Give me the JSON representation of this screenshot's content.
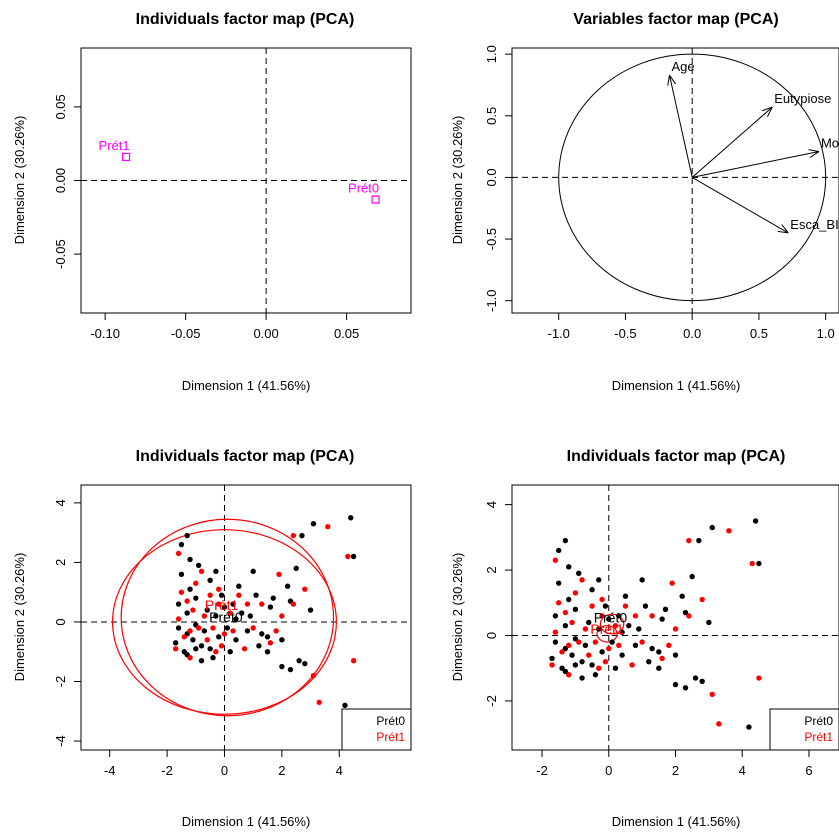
{
  "chart_data": [
    {
      "type": "scatter",
      "title": "Individuals factor map (PCA)",
      "xlabel": "Dimension 1 (41.56%)",
      "ylabel": "Dimension 2 (30.26%)",
      "xlim": [
        -0.115,
        0.09
      ],
      "ylim": [
        -0.09,
        0.09
      ],
      "xticks": [
        -0.1,
        -0.05,
        0.0,
        0.05
      ],
      "xtick_labels": [
        "-0.10",
        "-0.05",
        "0.00",
        "0.05"
      ],
      "yticks": [
        -0.05,
        0.0,
        0.05
      ],
      "ytick_labels": [
        "-0.05",
        "0.00",
        "0.05"
      ],
      "grid": false,
      "color": "#ff00ff",
      "points": [
        {
          "label": "Prét1",
          "x": -0.087,
          "y": 0.016
        },
        {
          "label": "Prét0",
          "x": 0.068,
          "y": -0.013
        }
      ]
    },
    {
      "type": "scatter",
      "title": "Variables factor map (PCA)",
      "xlabel": "Dimension 1 (41.56%)",
      "ylabel": "Dimension 2 (30.26%)",
      "xlim": [
        -1.35,
        1.1
      ],
      "ylim": [
        -1.1,
        1.05
      ],
      "xticks": [
        -1.0,
        -0.5,
        0.0,
        0.5,
        1.0
      ],
      "xtick_labels": [
        "-1.0",
        "-0.5",
        "0.0",
        "0.5",
        "1.0"
      ],
      "yticks": [
        -1.0,
        -0.5,
        0.0,
        0.5,
        1.0
      ],
      "ytick_labels": [
        "-1.0",
        "-0.5",
        "0.0",
        "0.5",
        "1.0"
      ],
      "grid": false,
      "arrows": [
        {
          "label": "Age",
          "x": -0.17,
          "y": 0.83
        },
        {
          "label": "Eutypiose",
          "x": 0.6,
          "y": 0.57
        },
        {
          "label": "Morta",
          "x": 0.95,
          "y": 0.21
        },
        {
          "label": "Esca_BI",
          "x": 0.72,
          "y": -0.45
        }
      ]
    },
    {
      "type": "scatter",
      "title": "Individuals factor map (PCA)",
      "xlabel": "Dimension 1 (41.56%)",
      "ylabel": "Dimension 2 (30.26%)",
      "xlim": [
        -5,
        6.5
      ],
      "ylim": [
        -4.3,
        4.6
      ],
      "xticks": [
        -4,
        -2,
        0,
        2,
        4
      ],
      "xtick_labels": [
        "-4",
        "-2",
        "0",
        "2",
        "4"
      ],
      "yticks": [
        -4,
        -2,
        0,
        2,
        4
      ],
      "ytick_labels": [
        "-4",
        "-2",
        "0",
        "2",
        "4"
      ],
      "grid": false,
      "legend": {
        "position": "bottom-right",
        "entries": [
          {
            "name": "Prét0",
            "color": "#000000"
          },
          {
            "name": "Prét1",
            "color": "#ff0000"
          }
        ]
      },
      "group_labels": [
        {
          "text": "Prét0",
          "x": 0.05,
          "y": 0.0,
          "color": "#000000"
        },
        {
          "text": "Prét1",
          "x": -0.1,
          "y": 0.4,
          "color": "#ff0000"
        }
      ],
      "ellipses": [
        {
          "cx": 0.0,
          "cy": 0.0,
          "rx": 3.9,
          "ry": 3.1,
          "color": "#ff0000"
        },
        {
          "cx": 0.1,
          "cy": 0.15,
          "rx": 3.7,
          "ry": 3.3,
          "color": "#ff0000"
        }
      ],
      "series": [
        {
          "name": "Prét0",
          "color": "#000000",
          "points": [
            [
              4.4,
              3.5
            ],
            [
              3.1,
              3.3
            ],
            [
              4.5,
              2.2
            ],
            [
              2.7,
              2.9
            ],
            [
              2.5,
              1.8
            ],
            [
              2.2,
              1.2
            ],
            [
              2.3,
              0.7
            ],
            [
              3.0,
              0.4
            ],
            [
              2.0,
              -0.6
            ],
            [
              2.8,
              -1.4
            ],
            [
              2.0,
              -1.5
            ],
            [
              2.3,
              -1.6
            ],
            [
              4.2,
              -2.8
            ],
            [
              2.6,
              -1.3
            ],
            [
              1.7,
              0.8
            ],
            [
              1.6,
              0.5
            ],
            [
              1.3,
              -0.4
            ],
            [
              1.5,
              -1.0
            ],
            [
              1.0,
              1.7
            ],
            [
              1.1,
              0.9
            ],
            [
              0.9,
              0.2
            ],
            [
              0.8,
              -0.3
            ],
            [
              1.2,
              -0.8
            ],
            [
              0.5,
              1.2
            ],
            [
              0.6,
              0.3
            ],
            [
              0.4,
              -0.6
            ],
            [
              0.2,
              -1.0
            ],
            [
              0.3,
              0.6
            ],
            [
              0.1,
              -0.2
            ],
            [
              -0.1,
              0.9
            ],
            [
              -0.3,
              0.2
            ],
            [
              -0.2,
              -0.5
            ],
            [
              -0.4,
              -1.2
            ],
            [
              -0.5,
              1.4
            ],
            [
              -0.6,
              0.4
            ],
            [
              -0.7,
              -0.3
            ],
            [
              -0.8,
              -0.8
            ],
            [
              -0.9,
              1.9
            ],
            [
              -1.0,
              0.8
            ],
            [
              -1.0,
              -0.1
            ],
            [
              -1.1,
              -0.6
            ],
            [
              -1.2,
              2.1
            ],
            [
              -1.2,
              1.1
            ],
            [
              -1.3,
              0.3
            ],
            [
              -1.3,
              -0.4
            ],
            [
              -1.4,
              -1.0
            ],
            [
              -1.5,
              2.6
            ],
            [
              -1.3,
              2.9
            ],
            [
              -1.6,
              0.6
            ],
            [
              -1.6,
              -0.2
            ],
            [
              -1.7,
              -0.7
            ],
            [
              -1.5,
              1.6
            ],
            [
              -0.3,
              1.7
            ],
            [
              0.0,
              0.5
            ],
            [
              -0.5,
              -0.9
            ],
            [
              1.5,
              -0.5
            ],
            [
              -1.0,
              -0.9
            ],
            [
              -1.3,
              -1.1
            ],
            [
              -0.8,
              -1.3
            ],
            [
              0.4,
              0.1
            ]
          ]
        },
        {
          "name": "Prét1",
          "color": "#ff0000",
          "points": [
            [
              3.6,
              3.2
            ],
            [
              4.3,
              2.2
            ],
            [
              2.4,
              2.9
            ],
            [
              1.9,
              1.6
            ],
            [
              2.8,
              1.1
            ],
            [
              2.0,
              0.2
            ],
            [
              1.8,
              -0.3
            ],
            [
              3.1,
              -1.8
            ],
            [
              3.3,
              -2.7
            ],
            [
              4.5,
              -1.3
            ],
            [
              1.3,
              0.6
            ],
            [
              1.0,
              -0.2
            ],
            [
              0.8,
              0.6
            ],
            [
              0.7,
              -0.9
            ],
            [
              0.5,
              0.9
            ],
            [
              0.2,
              0.3
            ],
            [
              0.0,
              -0.4
            ],
            [
              -0.2,
              0.6
            ],
            [
              -0.4,
              -0.2
            ],
            [
              -0.5,
              0.9
            ],
            [
              -0.6,
              -0.6
            ],
            [
              -0.7,
              0.2
            ],
            [
              -0.9,
              -0.2
            ],
            [
              -1.0,
              1.3
            ],
            [
              -1.1,
              0.4
            ],
            [
              -1.2,
              -0.3
            ],
            [
              -1.3,
              0.7
            ],
            [
              -1.4,
              -0.5
            ],
            [
              -1.5,
              1.0
            ],
            [
              -1.6,
              0.1
            ],
            [
              -1.6,
              2.3
            ],
            [
              -1.7,
              -0.9
            ],
            [
              -0.1,
              -0.8
            ],
            [
              0.3,
              -0.3
            ],
            [
              -0.3,
              -1.0
            ],
            [
              -0.8,
              1.7
            ],
            [
              1.6,
              -0.7
            ],
            [
              2.4,
              0.6
            ],
            [
              -1.2,
              -1.2
            ],
            [
              -0.2,
              1.1
            ]
          ]
        }
      ]
    },
    {
      "type": "scatter",
      "title": "Individuals factor map (PCA)",
      "xlabel": "Dimension 1 (41.56%)",
      "ylabel": "Dimension 2 (30.26%)",
      "xlim": [
        -2.9,
        6.9
      ],
      "ylim": [
        -3.5,
        4.6
      ],
      "xticks": [
        -2,
        0,
        2,
        4,
        6
      ],
      "xtick_labels": [
        "-2",
        "0",
        "2",
        "4",
        "6"
      ],
      "yticks": [
        -2,
        0,
        2,
        4
      ],
      "ytick_labels": [
        "-2",
        "0",
        "2",
        "4"
      ],
      "grid": false,
      "legend": {
        "position": "bottom-right",
        "entries": [
          {
            "name": "Prét0",
            "color": "#000000"
          },
          {
            "name": "Prét1",
            "color": "#ff0000"
          }
        ]
      },
      "group_labels": [
        {
          "text": "Prét0",
          "x": 0.05,
          "y": 0.4,
          "color": "#000000"
        },
        {
          "text": "Prét1",
          "x": -0.05,
          "y": 0.05,
          "color": "#ff0000"
        }
      ],
      "ellipses": [
        {
          "cx": 0.1,
          "cy": 0.35,
          "rx": 0.35,
          "ry": 0.3,
          "color": "#ff0000"
        },
        {
          "cx": -0.05,
          "cy": 0.05,
          "rx": 0.3,
          "ry": 0.25,
          "color": "#ff0000"
        }
      ],
      "series": [
        {
          "name": "Prét0",
          "color": "#000000",
          "points": [
            [
              4.4,
              3.5
            ],
            [
              3.1,
              3.3
            ],
            [
              4.5,
              2.2
            ],
            [
              2.7,
              2.9
            ],
            [
              2.5,
              1.8
            ],
            [
              2.2,
              1.2
            ],
            [
              2.3,
              0.7
            ],
            [
              3.0,
              0.4
            ],
            [
              2.0,
              -0.6
            ],
            [
              2.8,
              -1.4
            ],
            [
              2.0,
              -1.5
            ],
            [
              2.3,
              -1.6
            ],
            [
              4.2,
              -2.8
            ],
            [
              2.6,
              -1.3
            ],
            [
              1.7,
              0.8
            ],
            [
              1.6,
              0.5
            ],
            [
              1.3,
              -0.4
            ],
            [
              1.5,
              -1.0
            ],
            [
              1.0,
              1.7
            ],
            [
              1.1,
              0.9
            ],
            [
              0.9,
              0.2
            ],
            [
              0.8,
              -0.3
            ],
            [
              1.2,
              -0.8
            ],
            [
              0.5,
              1.2
            ],
            [
              0.6,
              0.3
            ],
            [
              0.4,
              -0.6
            ],
            [
              0.2,
              -1.0
            ],
            [
              0.3,
              0.6
            ],
            [
              0.1,
              -0.2
            ],
            [
              -0.1,
              0.9
            ],
            [
              -0.3,
              0.2
            ],
            [
              -0.2,
              -0.5
            ],
            [
              -0.4,
              -1.2
            ],
            [
              -0.5,
              1.4
            ],
            [
              -0.6,
              0.4
            ],
            [
              -0.7,
              -0.3
            ],
            [
              -0.8,
              -0.8
            ],
            [
              -0.9,
              1.9
            ],
            [
              -1.0,
              0.8
            ],
            [
              -1.0,
              -0.1
            ],
            [
              -1.1,
              -0.6
            ],
            [
              -1.2,
              2.1
            ],
            [
              -1.2,
              1.1
            ],
            [
              -1.3,
              0.3
            ],
            [
              -1.3,
              -0.4
            ],
            [
              -1.4,
              -1.0
            ],
            [
              -1.5,
              2.6
            ],
            [
              -1.3,
              2.9
            ],
            [
              -1.6,
              0.6
            ],
            [
              -1.6,
              -0.2
            ],
            [
              -1.7,
              -0.7
            ],
            [
              -1.5,
              1.6
            ],
            [
              -0.3,
              1.7
            ],
            [
              0.0,
              0.5
            ],
            [
              -0.5,
              -0.9
            ],
            [
              1.5,
              -0.5
            ],
            [
              -1.0,
              -0.9
            ],
            [
              -1.3,
              -1.1
            ],
            [
              -0.8,
              -1.3
            ],
            [
              0.4,
              0.1
            ]
          ]
        },
        {
          "name": "Prét1",
          "color": "#ff0000",
          "points": [
            [
              3.6,
              3.2
            ],
            [
              4.3,
              2.2
            ],
            [
              2.4,
              2.9
            ],
            [
              1.9,
              1.6
            ],
            [
              2.8,
              1.1
            ],
            [
              2.0,
              0.2
            ],
            [
              1.8,
              -0.3
            ],
            [
              3.1,
              -1.8
            ],
            [
              3.3,
              -2.7
            ],
            [
              4.5,
              -1.3
            ],
            [
              1.3,
              0.6
            ],
            [
              1.0,
              -0.2
            ],
            [
              0.8,
              0.6
            ],
            [
              0.7,
              -0.9
            ],
            [
              0.5,
              0.9
            ],
            [
              0.2,
              0.3
            ],
            [
              0.0,
              -0.4
            ],
            [
              -0.2,
              0.6
            ],
            [
              -0.4,
              -0.2
            ],
            [
              -0.5,
              0.9
            ],
            [
              -0.6,
              -0.6
            ],
            [
              -0.7,
              0.2
            ],
            [
              -0.9,
              -0.2
            ],
            [
              -1.0,
              1.3
            ],
            [
              -1.1,
              0.4
            ],
            [
              -1.2,
              -0.3
            ],
            [
              -1.3,
              0.7
            ],
            [
              -1.4,
              -0.5
            ],
            [
              -1.5,
              1.0
            ],
            [
              -1.6,
              0.1
            ],
            [
              -1.6,
              2.3
            ],
            [
              -1.7,
              -0.9
            ],
            [
              -0.1,
              -0.8
            ],
            [
              0.3,
              -0.3
            ],
            [
              -0.3,
              -1.0
            ],
            [
              -0.8,
              1.7
            ],
            [
              1.6,
              -0.7
            ],
            [
              2.4,
              0.6
            ],
            [
              -1.2,
              -1.2
            ],
            [
              -0.2,
              1.1
            ]
          ]
        }
      ]
    }
  ]
}
